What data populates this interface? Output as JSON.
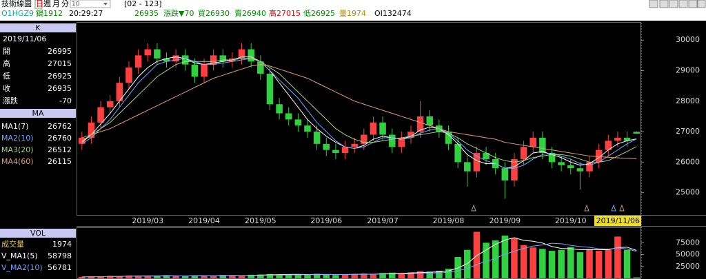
{
  "toolbar": {
    "title": "技術線圖",
    "tabs": [
      "日",
      "週",
      "月",
      "分"
    ],
    "period": "10",
    "range": "[02 - 123]"
  },
  "quote": {
    "symbol": "O1HGZ9",
    "contract": "鍋1912",
    "time": "20:29:27",
    "last": "26935",
    "change": "漲跌▼70",
    "bid": "買26930",
    "ask": "賣26940",
    "high": "高27015",
    "low": "低26925",
    "volume": "量1974",
    "oi": "OI132474"
  },
  "k_panel": {
    "header": "K",
    "labels": [
      "開",
      "高",
      "低",
      "收",
      "漲跌"
    ],
    "change": -70
  },
  "ma_panel": {
    "header": "MA"
  },
  "vol_panel": {
    "header": "VOL",
    "label": "成交量"
  },
  "chart_data": [
    {
      "type": "candlestick",
      "categories": [
        null,
        null,
        null,
        null,
        null,
        null,
        null,
        "2019/03",
        null,
        null,
        null,
        null,
        null,
        "2019/04",
        null,
        null,
        null,
        null,
        null,
        "2019/05",
        null,
        null,
        null,
        null,
        null,
        null,
        "2019/06",
        null,
        null,
        null,
        null,
        null,
        "2019/07",
        null,
        null,
        null,
        null,
        null,
        null,
        "2019/08",
        null,
        null,
        null,
        null,
        null,
        "2019/09",
        null,
        null,
        null,
        null,
        null,
        null,
        "2019/10",
        null,
        null,
        null,
        null,
        null,
        null,
        "2019/11/06"
      ],
      "open": [
        26600,
        26800,
        27300,
        27800,
        28000,
        28600,
        29100,
        29500,
        29700,
        29400,
        29300,
        29500,
        29200,
        28800,
        29200,
        29500,
        29300,
        29400,
        29700,
        29300,
        28900,
        27900,
        27600,
        27400,
        27200,
        27000,
        26600,
        26400,
        26300,
        26500,
        26600,
        26900,
        27300,
        26900,
        26500,
        26800,
        27000,
        27500,
        27200,
        27000,
        26600,
        26000,
        25700,
        26300,
        26100,
        25800,
        25400,
        26100,
        26500,
        26800,
        26300,
        26000,
        25900,
        25800,
        25700,
        26000,
        26400,
        26700,
        26800,
        26995
      ],
      "high": [
        27000,
        27500,
        28000,
        28200,
        28800,
        29300,
        29700,
        29900,
        29900,
        29600,
        29700,
        29700,
        29400,
        29400,
        29700,
        29700,
        29600,
        29900,
        29900,
        29500,
        29100,
        28100,
        27800,
        27600,
        27400,
        27200,
        26800,
        26600,
        26700,
        26800,
        27100,
        27500,
        27500,
        27100,
        27000,
        27200,
        28000,
        27700,
        27400,
        27200,
        26800,
        26200,
        26500,
        26500,
        26300,
        26000,
        26300,
        26700,
        27000,
        27000,
        26500,
        26200,
        26100,
        26000,
        26200,
        26600,
        26900,
        27000,
        27000,
        27015
      ],
      "low": [
        26400,
        26600,
        27100,
        27600,
        27800,
        28400,
        28900,
        29300,
        29200,
        29100,
        29100,
        29000,
        28600,
        28600,
        29000,
        29100,
        29100,
        29200,
        29100,
        28700,
        27700,
        27400,
        27200,
        27000,
        26800,
        26400,
        26200,
        26100,
        26100,
        26300,
        26400,
        26700,
        26700,
        26300,
        26300,
        26600,
        26800,
        27000,
        26800,
        26400,
        25800,
        25200,
        25500,
        25900,
        25600,
        24800,
        25200,
        25900,
        26300,
        26100,
        25800,
        25700,
        25600,
        25100,
        25500,
        25800,
        26200,
        26500,
        26500,
        26925
      ],
      "close": [
        26800,
        27300,
        27800,
        28000,
        28600,
        29100,
        29500,
        29700,
        29400,
        29300,
        29500,
        29200,
        28800,
        29200,
        29500,
        29300,
        29400,
        29700,
        29300,
        28900,
        27900,
        27600,
        27400,
        27200,
        27000,
        26600,
        26400,
        26300,
        26500,
        26600,
        26900,
        27300,
        26900,
        26500,
        26800,
        27000,
        27500,
        27200,
        27000,
        26600,
        26000,
        25700,
        26300,
        26100,
        25800,
        25400,
        26100,
        26500,
        26800,
        26300,
        26000,
        25900,
        25800,
        25700,
        26000,
        26400,
        26700,
        26800,
        26700,
        26935
      ],
      "up_color": "#ff4040",
      "down_color": "#30d040",
      "ylim": [
        24270,
        30570
      ],
      "yticks": [
        25000,
        26000,
        27000,
        28000,
        29000,
        30000
      ],
      "series": [
        {
          "name": "MA1(7)",
          "color": "#ffffff",
          "values": [
            26650,
            26900,
            27250,
            27600,
            28000,
            28400,
            28800,
            29100,
            29300,
            29400,
            29450,
            29400,
            29250,
            29200,
            29250,
            29300,
            29350,
            29450,
            29450,
            29300,
            29000,
            28600,
            28200,
            27800,
            27400,
            27100,
            26850,
            26650,
            26500,
            26450,
            26550,
            26750,
            26850,
            26800,
            26750,
            26850,
            27050,
            27150,
            27100,
            26900,
            26600,
            26250,
            26050,
            25950,
            25950,
            25800,
            25850,
            26050,
            26300,
            26350,
            26250,
            26150,
            26000,
            25900,
            25950,
            26150,
            26400,
            26600,
            26700,
            26762
          ]
        },
        {
          "name": "MA2(10)",
          "color": "#6fa8ff",
          "values": [
            26600,
            26800,
            27100,
            27400,
            27800,
            28200,
            28600,
            28900,
            29200,
            29300,
            29350,
            29400,
            29300,
            29200,
            29200,
            29250,
            29300,
            29350,
            29400,
            29300,
            29000,
            28700,
            28400,
            28100,
            27700,
            27300,
            27000,
            26700,
            26500,
            26450,
            26500,
            26650,
            26800,
            26800,
            26750,
            26800,
            26950,
            27050,
            27100,
            26950,
            26700,
            26400,
            26200,
            26050,
            25950,
            25800,
            25800,
            25900,
            26100,
            26250,
            26300,
            26200,
            26100,
            25950,
            25900,
            26000,
            26200,
            26400,
            26600,
            26760
          ]
        },
        {
          "name": "MA3(20)",
          "color": "#a8d080",
          "values": [
            26700,
            26900,
            27100,
            27300,
            27600,
            27900,
            28200,
            28500,
            28800,
            29000,
            29200,
            29300,
            29300,
            29300,
            29300,
            29350,
            29350,
            29400,
            29400,
            29300,
            29100,
            28900,
            28600,
            28300,
            28000,
            27700,
            27400,
            27100,
            26900,
            26750,
            26650,
            26650,
            26700,
            26750,
            26800,
            26850,
            26900,
            26950,
            27000,
            26950,
            26800,
            26600,
            26450,
            26300,
            26150,
            26050,
            26000,
            26050,
            26150,
            26200,
            26250,
            26250,
            26200,
            26100,
            26000,
            26000,
            26050,
            26200,
            26350,
            26512
          ]
        },
        {
          "name": "MA4(60)",
          "color": "#e0a070",
          "values": [
            26800,
            26900,
            27000,
            27100,
            27250,
            27400,
            27550,
            27700,
            27850,
            28000,
            28150,
            28300,
            28450,
            28600,
            28750,
            28850,
            28950,
            29050,
            29150,
            29200,
            29150,
            29050,
            28950,
            28850,
            28750,
            28600,
            28450,
            28300,
            28150,
            28000,
            27900,
            27800,
            27700,
            27600,
            27500,
            27400,
            27300,
            27200,
            27100,
            27000,
            26950,
            26900,
            26850,
            26800,
            26750,
            26650,
            26600,
            26550,
            26500,
            26450,
            26400,
            26350,
            26300,
            26250,
            26200,
            26180,
            26160,
            26140,
            26125,
            26115
          ]
        }
      ]
    },
    {
      "type": "bar",
      "values": [
        3000,
        4000,
        3500,
        5000,
        4500,
        6000,
        5500,
        4000,
        5000,
        6500,
        5000,
        4500,
        6000,
        5500,
        5000,
        7000,
        6000,
        5500,
        7500,
        8000,
        9000,
        8000,
        7500,
        8500,
        7000,
        9500,
        8000,
        7000,
        8500,
        9000,
        10000,
        9500,
        11000,
        12000,
        10000,
        13000,
        15000,
        14000,
        16000,
        20000,
        45000,
        60000,
        98000,
        75000,
        80000,
        90000,
        85000,
        70000,
        65000,
        62000,
        58000,
        60000,
        66000,
        55000,
        62000,
        58000,
        60000,
        88000,
        60000,
        1974
      ],
      "ylim": [
        0,
        106000
      ],
      "yticks": [
        25000,
        50000,
        75000
      ],
      "series": [
        {
          "name": "V_MA1(5)",
          "color": "#ffffff",
          "values": [
            3000,
            3500,
            3500,
            4000,
            4000,
            4600,
            4900,
            5000,
            5000,
            5400,
            5200,
            5000,
            5400,
            5500,
            5200,
            5600,
            5900,
            5800,
            6200,
            6800,
            7200,
            7800,
            8100,
            8300,
            8000,
            8100,
            8100,
            8000,
            8000,
            8300,
            8500,
            8800,
            9600,
            10300,
            10500,
            11100,
            12200,
            12800,
            13600,
            15600,
            22000,
            31000,
            47800,
            59600,
            71600,
            80600,
            85600,
            80000,
            78000,
            74400,
            67000,
            63000,
            62200,
            60200,
            60200,
            60200,
            60200,
            64800,
            65600,
            58798
          ]
        },
        {
          "name": "V_MA2(10)",
          "color": "#80a0ff",
          "values": [
            3000,
            3500,
            3500,
            3900,
            4000,
            4300,
            4500,
            4500,
            4600,
            4900,
            5100,
            5000,
            5200,
            5200,
            5300,
            5400,
            5500,
            5600,
            5800,
            6000,
            6400,
            6800,
            7000,
            7200,
            7400,
            7600,
            7800,
            7900,
            8100,
            8300,
            8400,
            8500,
            8900,
            9200,
            9300,
            9700,
            10400,
            10800,
            11500,
            12700,
            16000,
            20500,
            29200,
            35500,
            42000,
            50800,
            57200,
            63000,
            68000,
            70300,
            73800,
            72800,
            69600,
            67000,
            65400,
            62300,
            61600,
            63900,
            62000,
            56781
          ]
        }
      ]
    }
  ]
}
